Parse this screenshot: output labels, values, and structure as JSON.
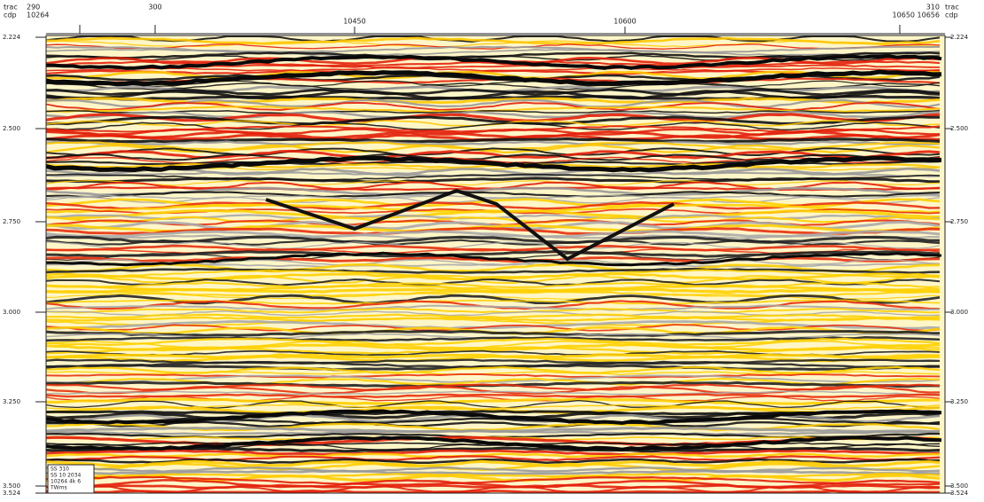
{
  "header": {
    "left_labels": [
      "trac",
      "cdp"
    ],
    "left_values": [
      "290",
      "10264"
    ],
    "marks": [
      "300",
      "10450",
      "10600"
    ],
    "right_values": [
      "310",
      "10650 10656"
    ],
    "right_labels": [
      "trac",
      "cdp"
    ]
  },
  "axis": {
    "left": [
      "2.224",
      "2.500",
      "2.750",
      "3.000",
      "3.250",
      "3.500",
      "3.524"
    ],
    "right": [
      "2.224",
      "2.500",
      "2.750",
      "3.000",
      "3.250",
      "3.500",
      "3.524"
    ]
  },
  "legend": {
    "lines": [
      "SS 310",
      "SS 10 2034",
      "10264 4k 6",
      "TWms"
    ]
  }
}
